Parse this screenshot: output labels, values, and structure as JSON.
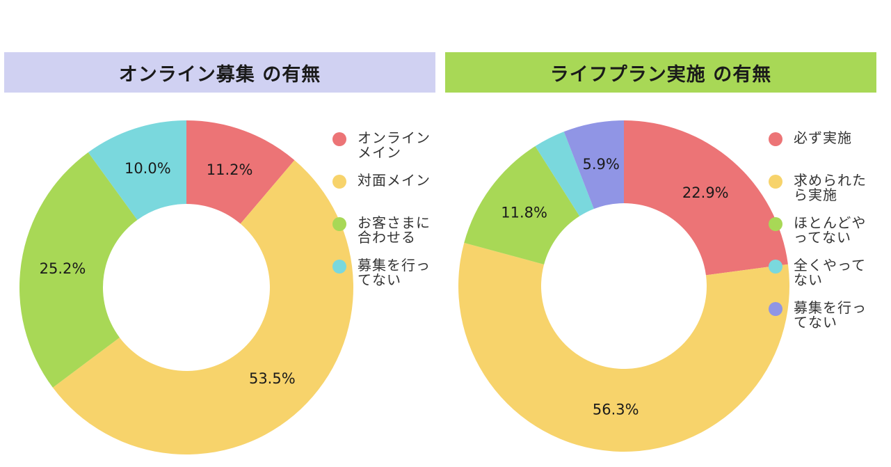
{
  "chart_data": [
    {
      "type": "pie",
      "variant": "donut",
      "title": "オンライン募集 の有無",
      "title_bg": "#d0d1f2",
      "categories": [
        "オンラインメイン",
        "対面メイン",
        "お客さまに合わせる",
        "募集を行ってない"
      ],
      "values": [
        11.2,
        53.5,
        25.2,
        10.0
      ],
      "labels": [
        "11.2%",
        "53.5%",
        "25.2%",
        "10.0%"
      ],
      "colors": [
        "#ec7476",
        "#f7d36b",
        "#a8d856",
        "#7ad8dd"
      ],
      "legend_position": "right"
    },
    {
      "type": "pie",
      "variant": "donut",
      "title": "ライフプラン実施 の有無",
      "title_bg": "#a8d856",
      "categories": [
        "必ず実施",
        "求められたら実施",
        "ほとんどやってない",
        "全くやってない",
        "募集を行ってない"
      ],
      "values": [
        22.9,
        56.3,
        11.8,
        3.1,
        5.9
      ],
      "labels": [
        "22.9%",
        "56.3%",
        "11.8%",
        "",
        "5.9%"
      ],
      "colors": [
        "#ec7476",
        "#f7d36b",
        "#a8d856",
        "#7ad8dd",
        "#9095e5"
      ],
      "legend_position": "right"
    }
  ]
}
